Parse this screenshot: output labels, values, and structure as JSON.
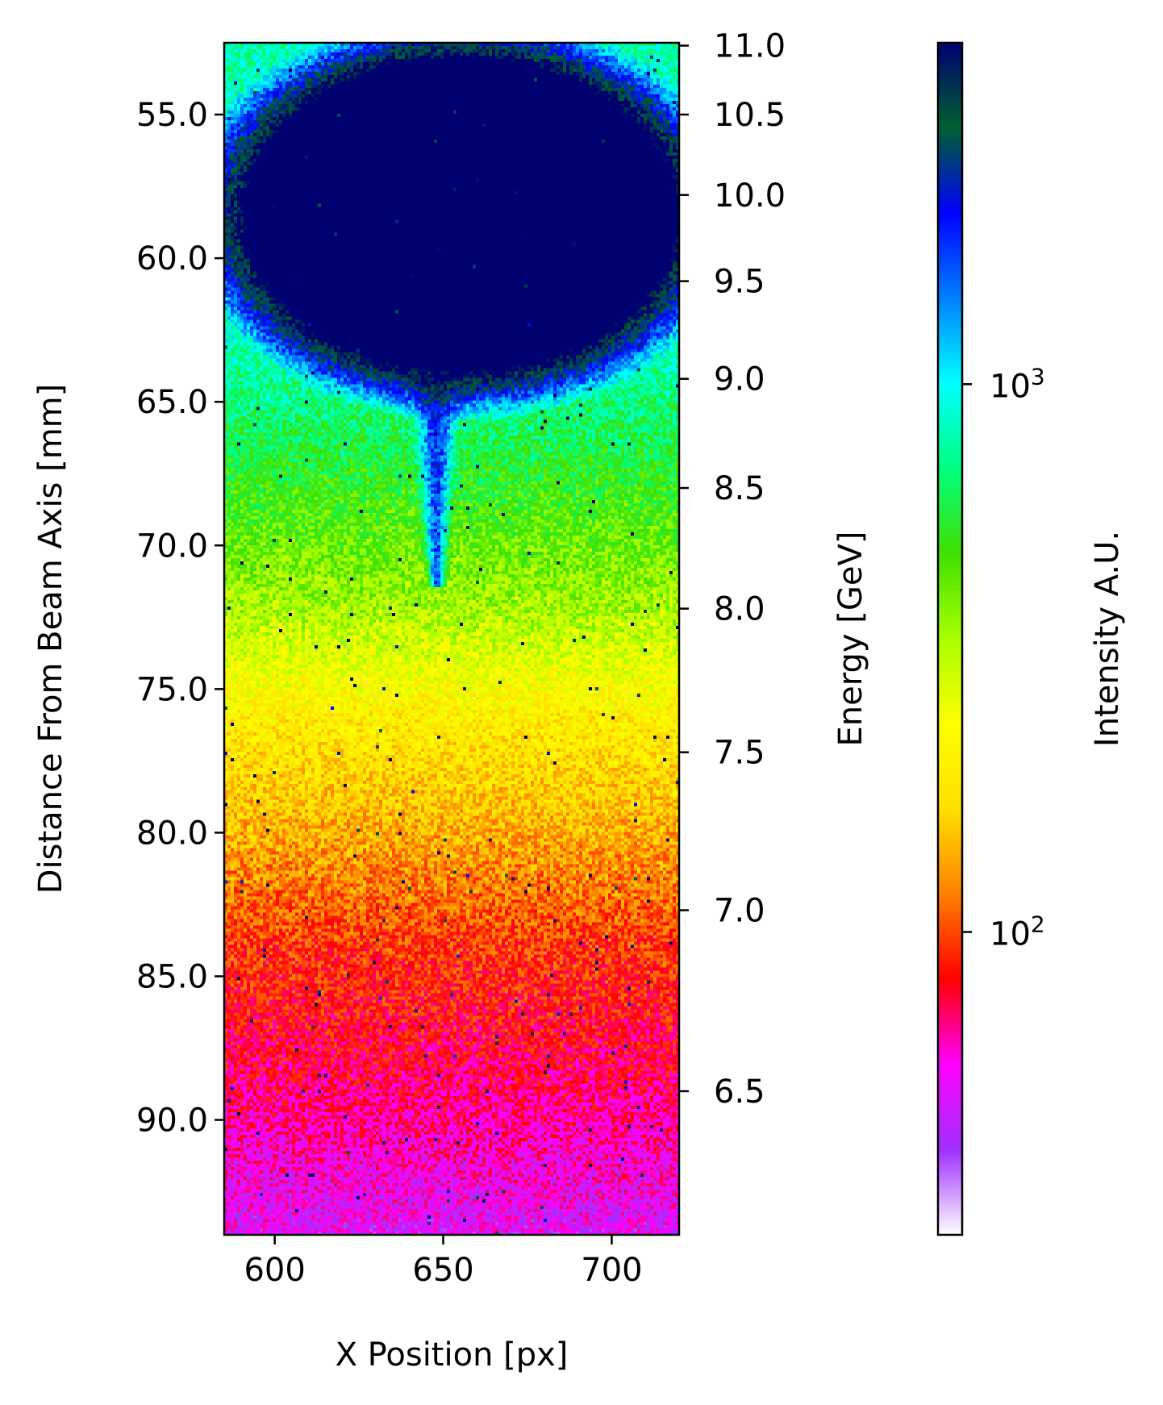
{
  "chart_data": {
    "type": "heatmap",
    "title": "",
    "xlabel": "X Position [px]",
    "ylabel": "Distance From Beam Axis [mm]",
    "y2label": "Energy [GeV]",
    "colorbar_label": "Intensity A.U.",
    "colorscale": "log",
    "colormap": "gist_ncar_r",
    "xlim": [
      585,
      720
    ],
    "ylim": [
      94.0,
      52.5
    ],
    "x_ticks": [
      600,
      650,
      700
    ],
    "x_tick_labels": [
      "600",
      "650",
      "700"
    ],
    "y_ticks": [
      55,
      60,
      65,
      70,
      75,
      80,
      85,
      90
    ],
    "y_tick_labels": [
      "55.0",
      "60.0",
      "65.0",
      "70.0",
      "75.0",
      "80.0",
      "85.0",
      "90.0"
    ],
    "energy_ticks": [
      {
        "label": "11.0",
        "distance_mm": 52.6
      },
      {
        "label": "10.5",
        "distance_mm": 55.0
      },
      {
        "label": "10.0",
        "distance_mm": 57.8
      },
      {
        "label": "9.5",
        "distance_mm": 60.8
      },
      {
        "label": "9.0",
        "distance_mm": 64.2
      },
      {
        "label": "8.5",
        "distance_mm": 68.0
      },
      {
        "label": "8.0",
        "distance_mm": 72.2
      },
      {
        "label": "7.5",
        "distance_mm": 77.2
      },
      {
        "label": "7.0",
        "distance_mm": 82.7
      },
      {
        "label": "6.5",
        "distance_mm": 89.0
      }
    ],
    "colorbar_range": [
      28,
      4200
    ],
    "colorbar_ticks": [
      {
        "value": 100,
        "base": "10",
        "exp": "2"
      },
      {
        "value": 1000,
        "base": "10",
        "exp": "3"
      }
    ],
    "colorbar_stops": [
      "#ffffff",
      "#a030ff",
      "#ff00ff",
      "#ff0000",
      "#ff8000",
      "#ffe000",
      "#ffff00",
      "#a8ff00",
      "#40e000",
      "#00ff80",
      "#00ffff",
      "#0080ff",
      "#0000ff",
      "#006030",
      "#000070"
    ],
    "features": {
      "saturated_core": {
        "x_range": [
          593,
          718
        ],
        "distance_range_mm": [
          53.2,
          63.8
        ],
        "intensity": ">4000"
      },
      "tail": {
        "x": 648,
        "distance_range_mm": [
          64,
          71.5
        ]
      },
      "background_trend": [
        {
          "distance_mm": 53,
          "intensity": 800
        },
        {
          "distance_mm": 60,
          "intensity": 1100
        },
        {
          "distance_mm": 65,
          "intensity": 700
        },
        {
          "distance_mm": 68,
          "intensity": 520
        },
        {
          "distance_mm": 72,
          "intensity": 350
        },
        {
          "distance_mm": 76,
          "intensity": 200
        },
        {
          "distance_mm": 80,
          "intensity": 140
        },
        {
          "distance_mm": 84,
          "intensity": 95
        },
        {
          "distance_mm": 88,
          "intensity": 75
        },
        {
          "distance_mm": 94,
          "intensity": 50
        }
      ]
    }
  }
}
